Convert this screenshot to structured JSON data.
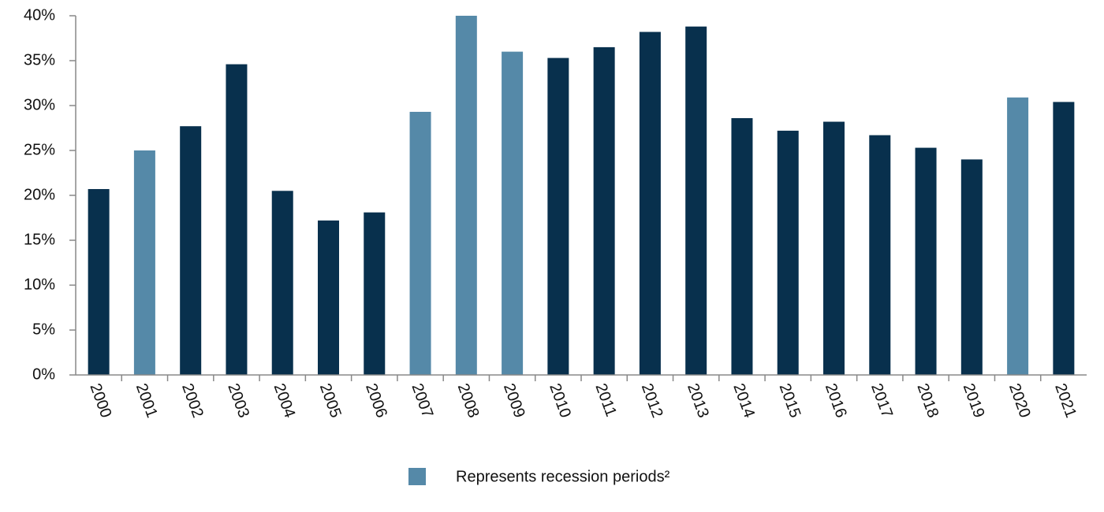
{
  "chart_data": {
    "type": "bar",
    "categories": [
      "2000",
      "2001",
      "2002",
      "2003",
      "2004",
      "2005",
      "2006",
      "2007",
      "2008",
      "2009",
      "2010",
      "2011",
      "2012",
      "2013",
      "2014",
      "2015",
      "2016",
      "2017",
      "2018",
      "2019",
      "2020",
      "2021"
    ],
    "values": [
      20.7,
      25,
      27.7,
      34.6,
      20.5,
      17.2,
      18.1,
      29.3,
      40,
      36,
      35.3,
      36.5,
      38.2,
      38.8,
      28.6,
      27.2,
      28.2,
      26.7,
      25.3,
      24,
      30.9,
      30.4
    ],
    "colors": [
      "#08304d",
      "#5589a8",
      "#08304d",
      "#08304d",
      "#08304d",
      "#08304d",
      "#08304d",
      "#5589a8",
      "#5589a8",
      "#5589a8",
      "#08304d",
      "#08304d",
      "#08304d",
      "#08304d",
      "#08304d",
      "#08304d",
      "#08304d",
      "#08304d",
      "#08304d",
      "#08304d",
      "#5589a8",
      "#08304d"
    ],
    "legend": {
      "label": "Represents recession periods²",
      "color": "#5589a8"
    },
    "ylim": [
      0,
      40
    ],
    "yticks": [
      {
        "value": 0,
        "label": "0%"
      },
      {
        "value": 5,
        "label": "5%"
      },
      {
        "value": 10,
        "label": "10%"
      },
      {
        "value": 15,
        "label": "15%"
      },
      {
        "value": 20,
        "label": "20%"
      },
      {
        "value": 25,
        "label": "25%"
      },
      {
        "value": 30,
        "label": "30%"
      },
      {
        "value": 35,
        "label": "35%"
      },
      {
        "value": 40,
        "label": "40%"
      }
    ],
    "grid": false
  }
}
